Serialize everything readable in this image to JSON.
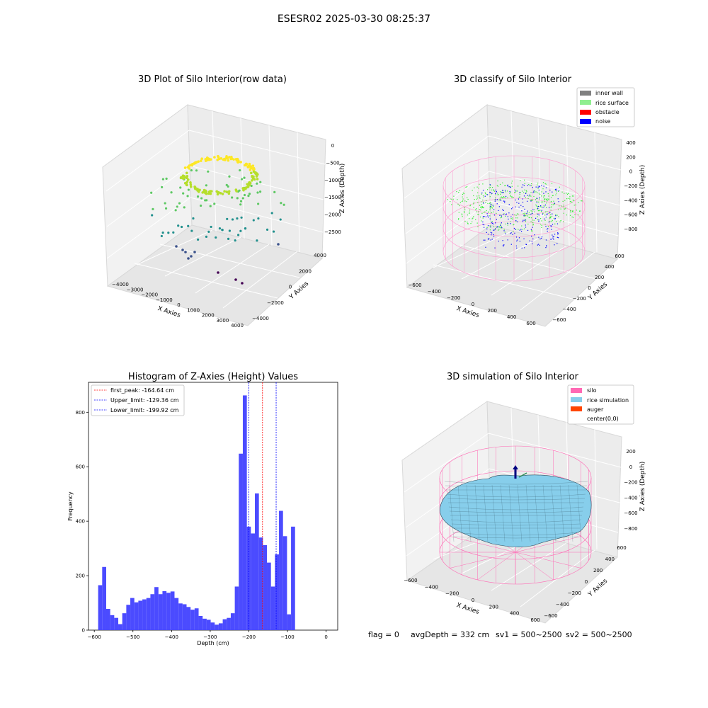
{
  "suptitle": "ESESR02 2025-03-30 08:25:37",
  "status_line": {
    "flag": "flag = 0",
    "avg_depth": "avgDepth = 332 cm",
    "sv1": "sv1 = 500~2500",
    "sv2": "sv2 = 500~2500"
  },
  "colors": {
    "histogram_bar": "#4b4bff",
    "inner_wall": "#808080",
    "rice_surface": "#90ee90",
    "obstacle": "#ff0000",
    "noise": "#0000ff",
    "silo": "#ff69b4",
    "rice_simulation": "#87ceeb",
    "auger": "#ff4500",
    "peak_line": "#ff0000",
    "limit_line": "#0000ff"
  },
  "chart_data": [
    {
      "type": "scatter",
      "projection": "3d",
      "title": "3D Plot of Silo Interior(row data)",
      "xlabel": "X Axies",
      "ylabel": "Y Axies",
      "zlabel": "Z Axies (Depth)",
      "x_ticks": [
        "−4000",
        "−3000",
        "−2000",
        "−1000",
        "0",
        "1000",
        "2000",
        "3000",
        "4000"
      ],
      "y_ticks": [
        "−4000",
        "−2000",
        "0",
        "2000",
        "4000"
      ],
      "z_ticks": [
        "0",
        "−500",
        "−1000",
        "−1500",
        "−2000",
        "−2500"
      ],
      "xlim": [
        -4500,
        4500
      ],
      "ylim": [
        -4500,
        4500
      ],
      "zlim": [
        -2800,
        0
      ],
      "colormap": "viridis",
      "grid": true
    },
    {
      "type": "scatter",
      "projection": "3d",
      "title": "3D classify of Silo Interior",
      "xlabel": "X Axies",
      "ylabel": "Y Axies",
      "zlabel": "Z Axies (Depth)",
      "x_ticks": [
        "−600",
        "−400",
        "−200",
        "0",
        "200",
        "400",
        "600"
      ],
      "y_ticks": [
        "−600",
        "−400",
        "−200",
        "0",
        "200",
        "400",
        "600"
      ],
      "z_ticks": [
        "400",
        "200",
        "0",
        "−200",
        "−400",
        "−600",
        "−800"
      ],
      "xlim": [
        -650,
        650
      ],
      "ylim": [
        -650,
        650
      ],
      "zlim": [
        -900,
        450
      ],
      "legend": [
        "inner wall",
        "rice surface",
        "obstacle",
        "noise"
      ],
      "legend_position": "top-right",
      "grid": true
    },
    {
      "type": "bar",
      "title": "Histogram of Z-Axies (Height) Values",
      "xlabel": "Depth (cm)",
      "ylabel": "Frequency",
      "xlim": [
        -615,
        30
      ],
      "ylim": [
        0,
        910
      ],
      "x_ticks": [
        -600,
        -500,
        -400,
        -300,
        -200,
        -100,
        0
      ],
      "x_tick_labels": [
        "−600",
        "−500",
        "−400",
        "−300",
        "−200",
        "−100",
        "0"
      ],
      "y_ticks": [
        0,
        200,
        400,
        600,
        800
      ],
      "bin_start": -590,
      "bin_width": 10.4,
      "values": [
        165,
        232,
        78,
        55,
        45,
        22,
        62,
        93,
        118,
        102,
        108,
        113,
        118,
        132,
        158,
        132,
        143,
        137,
        142,
        118,
        98,
        95,
        85,
        75,
        80,
        52,
        42,
        38,
        28,
        20,
        25,
        40,
        45,
        62,
        160,
        648,
        862,
        380,
        355,
        502,
        340,
        312,
        248,
        160,
        278,
        438,
        345,
        58,
        380
      ],
      "vlines": [
        {
          "x": -164.64,
          "label": "first_peak: -164.64 cm",
          "style": "peak"
        },
        {
          "x": -129.36,
          "label": "Upper_limit: -129.36 cm",
          "style": "limit"
        },
        {
          "x": -199.92,
          "label": "Lower_limit: -199.92 cm",
          "style": "limit"
        }
      ],
      "legend_position": "top-left"
    },
    {
      "type": "surface",
      "projection": "3d",
      "title": "3D simulation of Silo Interior",
      "xlabel": "X Axies",
      "ylabel": "Y Axies",
      "zlabel": "Z Axies (Depth)",
      "x_ticks": [
        "−600",
        "−400",
        "−200",
        "0",
        "200",
        "400",
        "600"
      ],
      "y_ticks": [
        "−600",
        "−400",
        "−200",
        "0",
        "200",
        "400",
        "600"
      ],
      "z_ticks": [
        "200",
        "0",
        "−200",
        "−400",
        "−600",
        "−800"
      ],
      "xlim": [
        -650,
        650
      ],
      "ylim": [
        -650,
        650
      ],
      "zlim": [
        -900,
        300
      ],
      "legend": [
        "silo",
        "rice simulation",
        "auger",
        "center(0,0)"
      ],
      "legend_position": "top-right",
      "grid": true
    }
  ]
}
